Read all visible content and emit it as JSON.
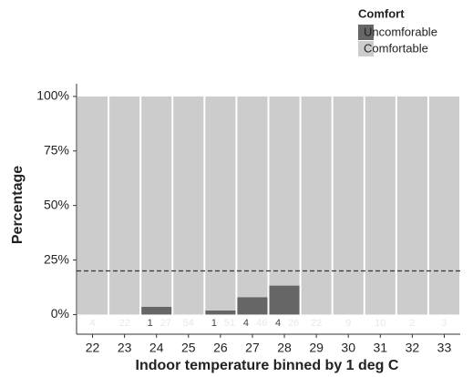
{
  "chart_data": {
    "type": "bar",
    "stacked": true,
    "xlabel": "Indoor temperature binned by 1 deg C",
    "ylabel": "Percentage",
    "categories": [
      "22",
      "23",
      "24",
      "25",
      "26",
      "27",
      "28",
      "29",
      "30",
      "31",
      "32",
      "33"
    ],
    "series": [
      {
        "name": "Uncomforable",
        "color": "#666666",
        "values": [
          0,
          0,
          3.6,
          0,
          1.9,
          8,
          13.3,
          0,
          0,
          0,
          0,
          0
        ],
        "counts": [
          null,
          null,
          "1",
          null,
          "1",
          "4",
          "4",
          null,
          null,
          null,
          null,
          null
        ]
      },
      {
        "name": "Comfortable",
        "color": "#cccccc",
        "values": [
          100,
          100,
          96.4,
          100,
          98.1,
          92,
          86.7,
          100,
          100,
          100,
          100,
          100
        ],
        "counts": [
          "4",
          "22",
          "27",
          "54",
          "51",
          "46",
          "26",
          "22",
          "9",
          "10",
          "2",
          "3"
        ]
      }
    ],
    "legend_title": "Comfort",
    "legend": "top-right",
    "hline": 20,
    "ylim": [
      -9,
      105.8
    ],
    "yticks": [
      {
        "value": 0,
        "label": "0%"
      },
      {
        "value": 25,
        "label": "25%"
      },
      {
        "value": 50,
        "label": "50%"
      },
      {
        "value": 75,
        "label": "75%"
      },
      {
        "value": 100,
        "label": "100%"
      }
    ]
  }
}
